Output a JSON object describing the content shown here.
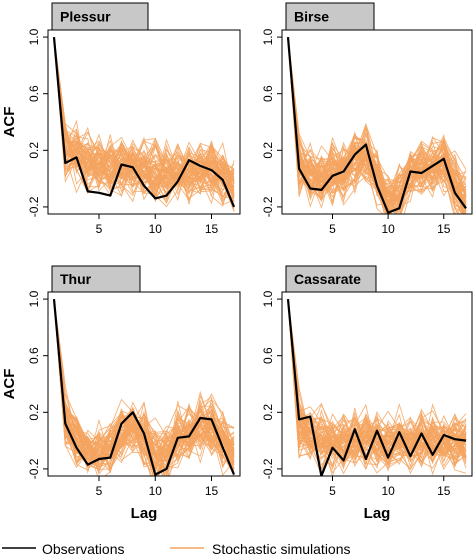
{
  "chart_data": [
    {
      "type": "line",
      "panel_label": "Plessur",
      "xlabel": "",
      "ylabel": "ACF",
      "xlim": [
        1,
        17
      ],
      "ylim": [
        -0.25,
        1.05
      ],
      "xticks": [
        5,
        10,
        15
      ],
      "yticks": [
        -0.2,
        0.2,
        0.6,
        1.0
      ],
      "x": [
        1,
        2,
        3,
        4,
        5,
        6,
        7,
        8,
        9,
        10,
        11,
        12,
        13,
        14,
        15,
        16,
        17
      ],
      "series": [
        {
          "name": "Observations",
          "color": "#000000",
          "values": [
            1.0,
            0.11,
            0.15,
            -0.09,
            -0.1,
            -0.12,
            0.1,
            0.08,
            -0.05,
            -0.14,
            -0.12,
            -0.02,
            0.13,
            0.09,
            0.06,
            -0.01,
            -0.2
          ]
        },
        {
          "name": "Stochastic simulations",
          "color": "#F4A460",
          "values": [
            1.0,
            0.19,
            0.16,
            0.12,
            0.1,
            0.08,
            0.08,
            0.08,
            0.06,
            0.05,
            0.04,
            0.04,
            0.04,
            0.05,
            0.06,
            0.03,
            -0.05
          ]
        }
      ]
    },
    {
      "type": "line",
      "panel_label": "Birse",
      "xlabel": "",
      "ylabel": "",
      "xlim": [
        1,
        17
      ],
      "ylim": [
        -0.25,
        1.05
      ],
      "xticks": [
        5,
        10,
        15
      ],
      "yticks": [
        -0.2,
        0.2,
        0.6,
        1.0
      ],
      "x": [
        1,
        2,
        3,
        4,
        5,
        6,
        7,
        8,
        9,
        10,
        11,
        12,
        13,
        14,
        15,
        16,
        17
      ],
      "series": [
        {
          "name": "Observations",
          "color": "#000000",
          "values": [
            1.0,
            0.07,
            -0.07,
            -0.08,
            0.02,
            0.05,
            0.17,
            0.24,
            -0.05,
            -0.24,
            -0.21,
            0.05,
            0.04,
            0.09,
            0.14,
            -0.1,
            -0.21
          ]
        },
        {
          "name": "Stochastic simulations",
          "color": "#F4A460",
          "values": [
            1.0,
            0.1,
            0.02,
            0.0,
            0.03,
            0.06,
            0.14,
            0.18,
            0.0,
            -0.16,
            -0.14,
            0.04,
            0.06,
            0.09,
            0.12,
            -0.04,
            -0.15
          ]
        }
      ]
    },
    {
      "type": "line",
      "panel_label": "Thur",
      "xlabel": "Lag",
      "ylabel": "ACF",
      "xlim": [
        1,
        17
      ],
      "ylim": [
        -0.25,
        1.05
      ],
      "xticks": [
        5,
        10,
        15
      ],
      "yticks": [
        -0.2,
        0.2,
        0.6,
        1.0
      ],
      "x": [
        1,
        2,
        3,
        4,
        5,
        6,
        7,
        8,
        9,
        10,
        11,
        12,
        13,
        14,
        15,
        16,
        17
      ],
      "series": [
        {
          "name": "Observations",
          "color": "#000000",
          "values": [
            1.0,
            0.12,
            -0.05,
            -0.17,
            -0.13,
            -0.12,
            0.12,
            0.2,
            0.05,
            -0.24,
            -0.2,
            0.02,
            0.03,
            0.16,
            0.15,
            -0.05,
            -0.24
          ]
        },
        {
          "name": "Stochastic simulations",
          "color": "#F4A460",
          "values": [
            1.0,
            0.14,
            0.0,
            -0.08,
            -0.08,
            -0.05,
            0.06,
            0.09,
            0.02,
            -0.1,
            -0.08,
            0.02,
            0.05,
            0.1,
            0.1,
            0.0,
            -0.1
          ]
        }
      ]
    },
    {
      "type": "line",
      "panel_label": "Cassarate",
      "xlabel": "Lag",
      "ylabel": "",
      "xlim": [
        1,
        17
      ],
      "ylim": [
        -0.25,
        1.05
      ],
      "xticks": [
        5,
        10,
        15
      ],
      "yticks": [
        -0.2,
        0.2,
        0.6,
        1.0
      ],
      "x": [
        1,
        2,
        3,
        4,
        5,
        6,
        7,
        8,
        9,
        10,
        11,
        12,
        13,
        14,
        15,
        16,
        17
      ],
      "series": [
        {
          "name": "Observations",
          "color": "#000000",
          "values": [
            1.0,
            0.15,
            0.17,
            -0.25,
            -0.05,
            -0.14,
            0.08,
            -0.13,
            0.07,
            -0.12,
            0.06,
            -0.11,
            0.05,
            -0.1,
            0.04,
            0.01,
            0.0
          ]
        },
        {
          "name": "Stochastic simulations",
          "color": "#F4A460",
          "values": [
            1.0,
            0.1,
            0.06,
            0.0,
            -0.02,
            -0.02,
            0.0,
            0.0,
            0.0,
            -0.01,
            0.0,
            -0.01,
            0.0,
            -0.01,
            0.0,
            0.0,
            0.0
          ]
        }
      ]
    }
  ],
  "legend": {
    "entries": [
      {
        "label": "Observations",
        "color": "#000000"
      },
      {
        "label": "Stochastic simulations",
        "color": "#F4A460"
      }
    ]
  }
}
